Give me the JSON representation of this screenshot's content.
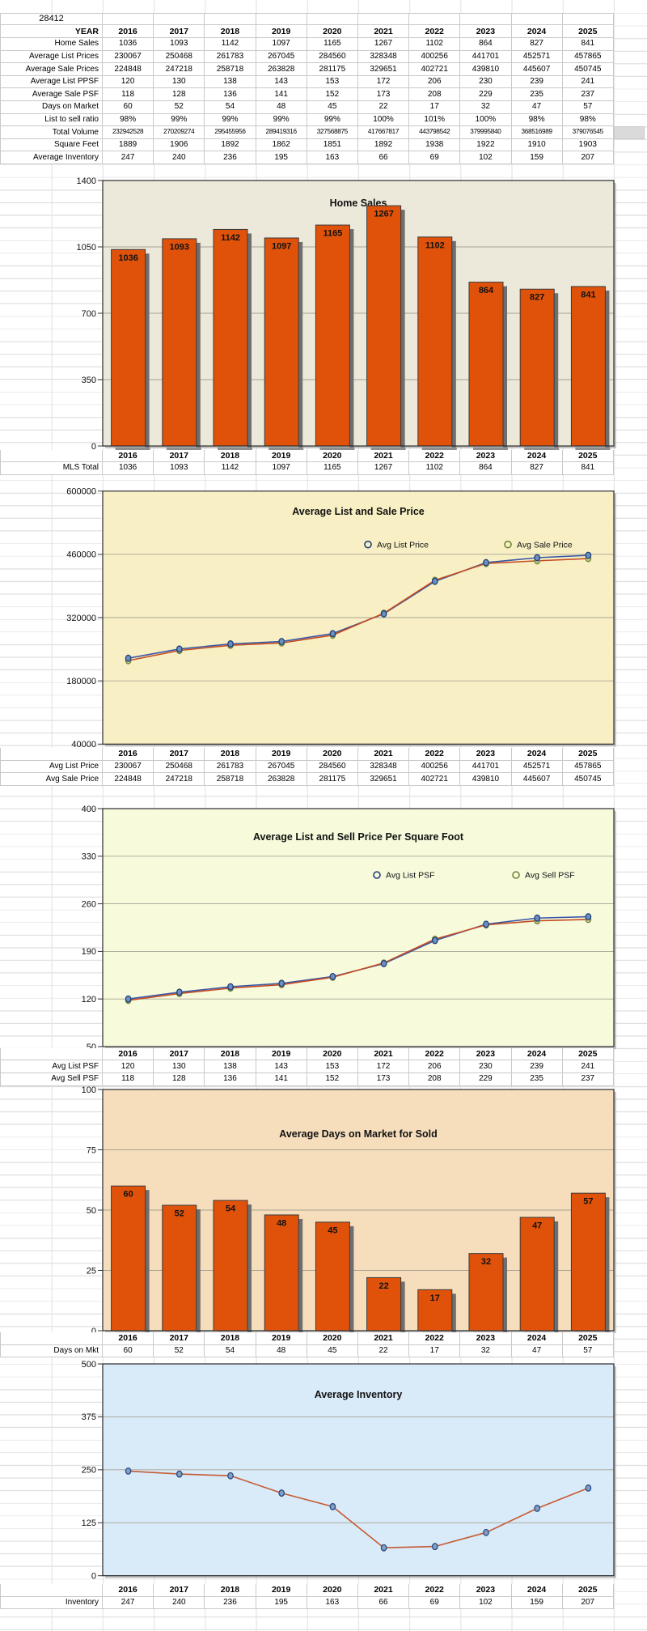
{
  "sheet": {
    "zip_code": "28412"
  },
  "years": [
    "2016",
    "2017",
    "2018",
    "2019",
    "2020",
    "2021",
    "2022",
    "2023",
    "2024",
    "2025"
  ],
  "summary_table": {
    "rows": [
      {
        "label": "YEAR",
        "bold": true,
        "values": [
          "2016",
          "2017",
          "2018",
          "2019",
          "2020",
          "2021",
          "2022",
          "2023",
          "2024",
          "2025"
        ]
      },
      {
        "label": "Home Sales",
        "values": [
          1036,
          1093,
          1142,
          1097,
          1165,
          1267,
          1102,
          864,
          827,
          841
        ]
      },
      {
        "label": "Average List Prices",
        "values": [
          230067,
          250468,
          261783,
          267045,
          284560,
          328348,
          400256,
          441701,
          452571,
          457865
        ]
      },
      {
        "label": "Average Sale Prices",
        "values": [
          224848,
          247218,
          258718,
          263828,
          281175,
          329651,
          402721,
          439810,
          445607,
          450745
        ]
      },
      {
        "label": "Average List PPSF",
        "values": [
          120,
          130,
          138,
          143,
          153,
          172,
          206,
          230,
          239,
          241
        ]
      },
      {
        "label": "Average Sale PSF",
        "values": [
          118,
          128,
          136,
          141,
          152,
          173,
          208,
          229,
          235,
          237
        ]
      },
      {
        "label": "Days on Market",
        "values": [
          60,
          52,
          54,
          48,
          45,
          22,
          17,
          32,
          47,
          57
        ]
      },
      {
        "label": "List to sell ratio",
        "values": [
          "98%",
          "99%",
          "99%",
          "99%",
          "99%",
          "100%",
          "101%",
          "100%",
          "98%",
          "98%"
        ]
      },
      {
        "label": "Total Volume",
        "small": true,
        "values": [
          232942528,
          270209274,
          295455956,
          289419316,
          327568875,
          417667817,
          443798542,
          379995840,
          368516989,
          379076545
        ]
      },
      {
        "label": "Square Feet",
        "values": [
          1889,
          1906,
          1892,
          1862,
          1851,
          1892,
          1938,
          1922,
          1910,
          1903
        ]
      },
      {
        "label": "Average Inventory",
        "values": [
          247,
          240,
          236,
          195,
          163,
          66,
          69,
          102,
          159,
          207
        ]
      }
    ]
  },
  "chart_data": [
    {
      "type": "bar",
      "title": "Home Sales",
      "categories": [
        "2016",
        "2017",
        "2018",
        "2019",
        "2020",
        "2021",
        "2022",
        "2023",
        "2024",
        "2025"
      ],
      "values": [
        1036,
        1093,
        1142,
        1097,
        1165,
        1267,
        1102,
        864,
        827,
        841
      ],
      "ylim": [
        0,
        1400
      ],
      "yticks": [
        0,
        350,
        700,
        1050,
        1400
      ],
      "grid": true,
      "legend_position": null,
      "bg": "#ECE9DA",
      "bar_color": "#E0520A",
      "table_rows": [
        {
          "label": "MLS Total",
          "values": [
            1036,
            1093,
            1142,
            1097,
            1165,
            1267,
            1102,
            864,
            827,
            841
          ]
        }
      ]
    },
    {
      "type": "line",
      "title": "Average List and Sale Price",
      "categories": [
        "2016",
        "2017",
        "2018",
        "2019",
        "2020",
        "2021",
        "2022",
        "2023",
        "2024",
        "2025"
      ],
      "series": [
        {
          "name": "Avg List Price",
          "values": [
            230067,
            250468,
            261783,
            267045,
            284560,
            328348,
            400256,
            441701,
            452571,
            457865
          ],
          "line_color": "#3A57A5",
          "marker_color": "#1F3F7A",
          "marker_fill": "#6D8FC0"
        },
        {
          "name": "Avg Sale Price",
          "values": [
            224848,
            247218,
            258718,
            263828,
            281175,
            329651,
            402721,
            439810,
            445607,
            450745
          ],
          "line_color": "#C44B22",
          "marker_color": "#75823B",
          "marker_fill": "#C3CC86"
        }
      ],
      "ylim": [
        40000,
        600000
      ],
      "yticks": [
        40000,
        180000,
        320000,
        460000,
        600000
      ],
      "grid": true,
      "legend_position": "inside-top-center",
      "bg": "#F8F0C4",
      "table_rows": [
        {
          "label": "Avg List Price",
          "values": [
            230067,
            250468,
            261783,
            267045,
            284560,
            328348,
            400256,
            441701,
            452571,
            457865
          ]
        },
        {
          "label": "Avg Sale Price",
          "values": [
            224848,
            247218,
            258718,
            263828,
            281175,
            329651,
            402721,
            439810,
            445607,
            450745
          ]
        }
      ]
    },
    {
      "type": "line",
      "title": "Average List and Sell Price Per Square Foot",
      "categories": [
        "2016",
        "2017",
        "2018",
        "2019",
        "2020",
        "2021",
        "2022",
        "2023",
        "2024",
        "2025"
      ],
      "series": [
        {
          "name": "Avg List PSF",
          "values": [
            120,
            130,
            138,
            143,
            153,
            172,
            206,
            230,
            239,
            241
          ],
          "line_color": "#3A57A5",
          "marker_color": "#1F3F7A",
          "marker_fill": "#6D8FC0"
        },
        {
          "name": "Avg Sell PSF",
          "values": [
            118,
            128,
            136,
            141,
            152,
            173,
            208,
            229,
            235,
            237
          ],
          "line_color": "#C44B22",
          "marker_color": "#75823B",
          "marker_fill": "#C3CC86"
        }
      ],
      "ylim": [
        50,
        400
      ],
      "yticks": [
        50,
        120,
        190,
        260,
        330,
        400
      ],
      "grid": true,
      "legend_position": "inside-top-center",
      "bg": "#F7FBDC",
      "table_rows": [
        {
          "label": "Avg List PSF",
          "values": [
            120,
            130,
            138,
            143,
            153,
            172,
            206,
            230,
            239,
            241
          ]
        },
        {
          "label": "Avg Sell PSF",
          "values": [
            118,
            128,
            136,
            141,
            152,
            173,
            208,
            229,
            235,
            237
          ]
        }
      ]
    },
    {
      "type": "bar",
      "title": "Average Days on Market for Sold",
      "categories": [
        "2016",
        "2017",
        "2018",
        "2019",
        "2020",
        "2021",
        "2022",
        "2023",
        "2024",
        "2025"
      ],
      "values": [
        60,
        52,
        54,
        48,
        45,
        22,
        17,
        32,
        47,
        57
      ],
      "ylim": [
        0,
        100
      ],
      "yticks": [
        0,
        25,
        50,
        75,
        100
      ],
      "grid": true,
      "legend_position": null,
      "bg": "#F6DEBD",
      "bar_color": "#E0520A",
      "table_rows": [
        {
          "label": "Days on Mkt",
          "values": [
            60,
            52,
            54,
            48,
            45,
            22,
            17,
            32,
            47,
            57
          ]
        }
      ]
    },
    {
      "type": "line",
      "title": "Average Inventory",
      "categories": [
        "2016",
        "2017",
        "2018",
        "2019",
        "2020",
        "2021",
        "2022",
        "2023",
        "2024",
        "2025"
      ],
      "series": [
        {
          "name": "Inventory",
          "values": [
            247,
            240,
            236,
            195,
            163,
            66,
            69,
            102,
            159,
            207
          ],
          "line_color": "#C55B35",
          "marker_color": "#2A4A80",
          "marker_fill": "#7F9FC6"
        }
      ],
      "ylim": [
        0,
        500
      ],
      "yticks": [
        0,
        125,
        250,
        375,
        500
      ],
      "grid": true,
      "legend_position": null,
      "bg": "#D9EAF8",
      "table_rows": [
        {
          "label": "Inventory",
          "values": [
            247,
            240,
            236,
            195,
            163,
            66,
            69,
            102,
            159,
            207
          ]
        }
      ]
    }
  ]
}
